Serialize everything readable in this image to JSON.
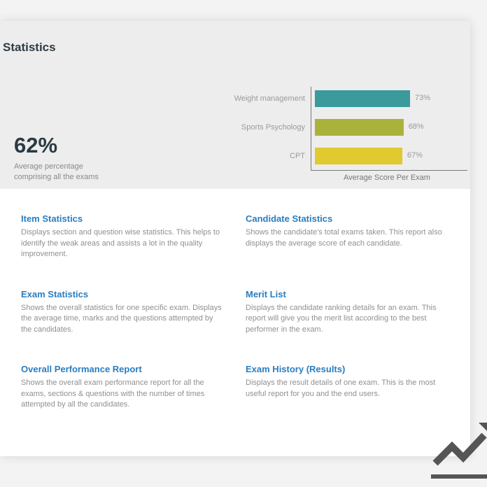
{
  "header": {
    "title": "Statistics"
  },
  "summary": {
    "value": "62%",
    "description": "Average percentage comprising all the exams"
  },
  "chart_data": {
    "type": "hbar",
    "categories": [
      "Weight management",
      "Sports Psychology",
      "CPT"
    ],
    "values": [
      73,
      68,
      67
    ],
    "value_labels": [
      "73%",
      "68%",
      "67%"
    ],
    "colors": [
      "#3a9a9c",
      "#a9b33c",
      "#e1c930"
    ],
    "xlim": [
      0,
      117
    ],
    "xlabel": "Average Score Per Exam"
  },
  "items": [
    {
      "title": "Item Statistics",
      "description": "Displays section and question wise statistics. This helps to identify the weak areas and assists a lot in the quality improvement."
    },
    {
      "title": "Candidate Statistics",
      "description": "Shows the candidate's total exams taken. This report also displays the average score of each candidate."
    },
    {
      "title": "Exam Statistics",
      "description": "Shows the overall statistics for one specific exam. Displays the average time, marks and the questions attempted by the candidates."
    },
    {
      "title": "Merit List",
      "description": "Displays the candidate ranking details for an exam. This report will give you the merit list according to the best performer in the exam."
    },
    {
      "title": "Overall Performance Report",
      "description": "Shows the overall exam performance report for all the exams, sections & questions with the number of times attempted by all the candidates."
    },
    {
      "title": "Exam History (Results)",
      "description": "Displays the result details of one exam. This is the most useful report for you and the end users."
    }
  ]
}
